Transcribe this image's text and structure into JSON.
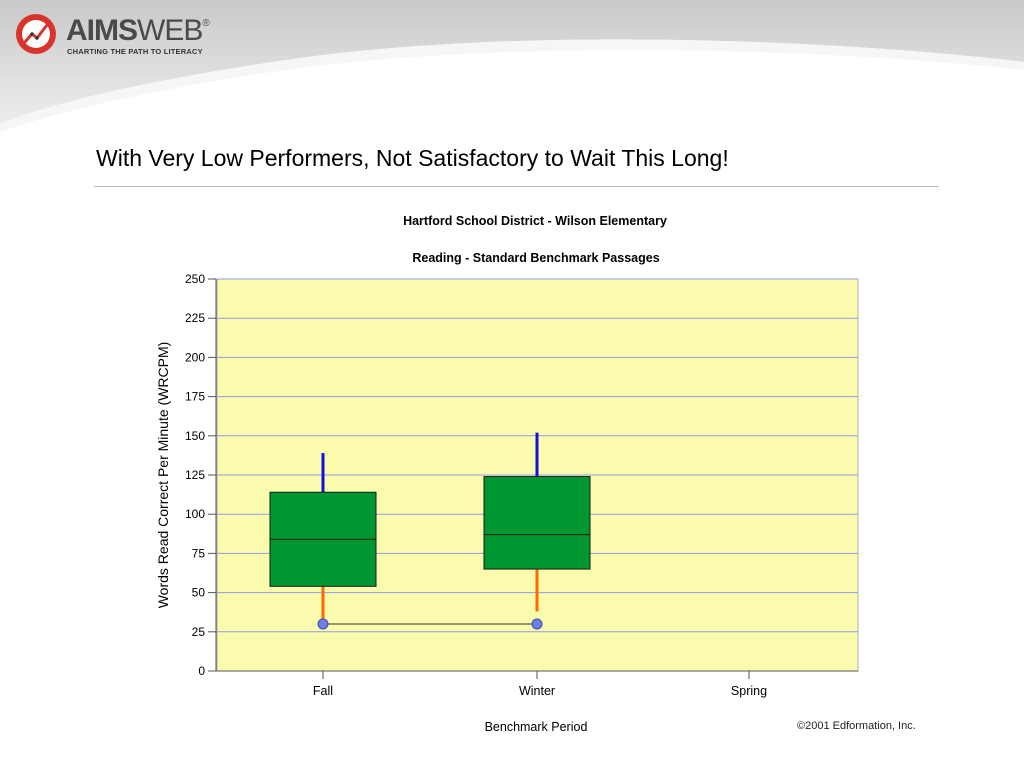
{
  "slide": {
    "title": "With Very Low Performers, Not Satisfactory to Wait This Long!",
    "copyright": "©2001 Edformation, Inc."
  },
  "logo": {
    "brand_bold": "AIMS",
    "brand_light": "WEB",
    "reg_mark": "®",
    "tagline": "CHARTING THE PATH TO LITERACY",
    "icon": "aimsweb-chart-logo-icon"
  },
  "colors": {
    "plot_background": "#FBFBAE",
    "gridline": "#8E9BE6",
    "box_fill": "#009632",
    "upper_whisker": "#1111DD",
    "lower_whisker": "#FF6A00",
    "marker": "#6F7FE8",
    "connector": "#333333"
  },
  "chart_data": {
    "type": "box",
    "title": "Hartford School District - Wilson Elementary",
    "subtitle": "Reading - Standard Benchmark Passages",
    "xlabel": "Benchmark Period",
    "ylabel": "Words Read Correct Per Minute (WRCPM)",
    "categories": [
      "Fall",
      "Winter",
      "Spring"
    ],
    "ylim": [
      0,
      250
    ],
    "yticks": [
      0,
      25,
      50,
      75,
      100,
      125,
      150,
      175,
      200,
      225,
      250
    ],
    "grid": true,
    "boxes": [
      {
        "category": "Fall",
        "whisker_low": 33,
        "q1": 54,
        "median": 84,
        "q3": 114,
        "whisker_high": 139
      },
      {
        "category": "Winter",
        "whisker_low": 38,
        "q1": 65,
        "median": 87,
        "q3": 124,
        "whisker_high": 152
      }
    ],
    "student_series": {
      "points": [
        {
          "category": "Fall",
          "value": 30
        },
        {
          "category": "Winter",
          "value": 30
        }
      ]
    }
  }
}
